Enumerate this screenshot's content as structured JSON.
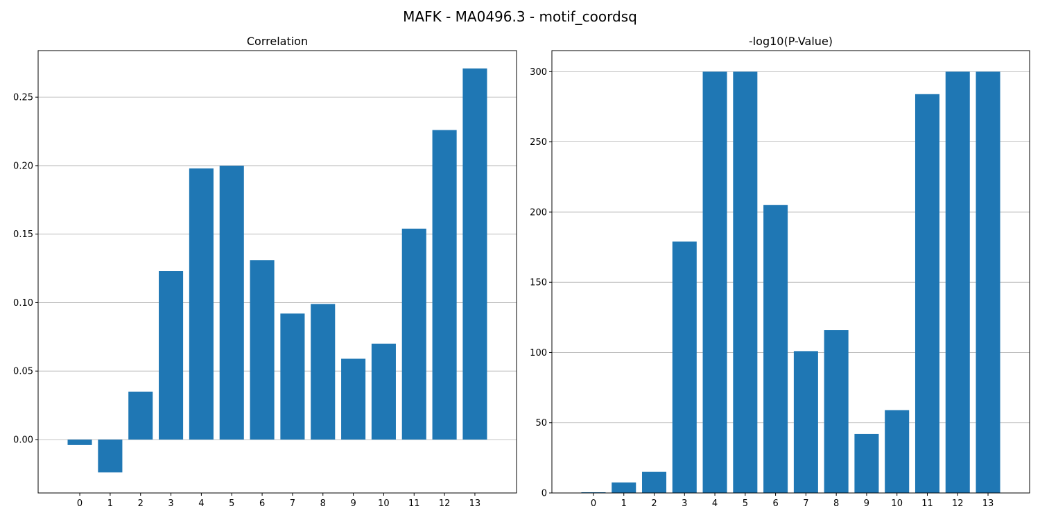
{
  "figure": {
    "title": "MAFK - MA0496.3 - motif_coordsq"
  },
  "colors": {
    "bar": "#1f77b4",
    "grid": "#b0b0b0",
    "axis": "#000000"
  },
  "chart_data": [
    {
      "type": "bar",
      "title": "Correlation",
      "xlabel": "",
      "ylabel": "",
      "categories": [
        "0",
        "1",
        "2",
        "3",
        "4",
        "5",
        "6",
        "7",
        "8",
        "9",
        "10",
        "11",
        "12",
        "13"
      ],
      "values": [
        -0.004,
        -0.024,
        0.035,
        0.123,
        0.198,
        0.2,
        0.131,
        0.092,
        0.099,
        0.059,
        0.07,
        0.154,
        0.226,
        0.271
      ],
      "ylim": [
        -0.039,
        0.284
      ],
      "yticks": [
        0.0,
        0.05,
        0.1,
        0.15,
        0.2,
        0.25
      ],
      "ytick_labels": [
        "0.00",
        "0.05",
        "0.10",
        "0.15",
        "0.20",
        "0.25"
      ],
      "grid": "y"
    },
    {
      "type": "bar",
      "title": "-log10(P-Value)",
      "xlabel": "",
      "ylabel": "",
      "categories": [
        "0",
        "1",
        "2",
        "3",
        "4",
        "5",
        "6",
        "7",
        "8",
        "9",
        "10",
        "11",
        "12",
        "13"
      ],
      "values": [
        0.5,
        7.5,
        15,
        179,
        300,
        300,
        205,
        101,
        116,
        42,
        59,
        284,
        300,
        300
      ],
      "ylim": [
        0,
        315
      ],
      "yticks": [
        0,
        50,
        100,
        150,
        200,
        250,
        300
      ],
      "ytick_labels": [
        "0",
        "50",
        "100",
        "150",
        "200",
        "250",
        "300"
      ],
      "grid": "y"
    }
  ]
}
